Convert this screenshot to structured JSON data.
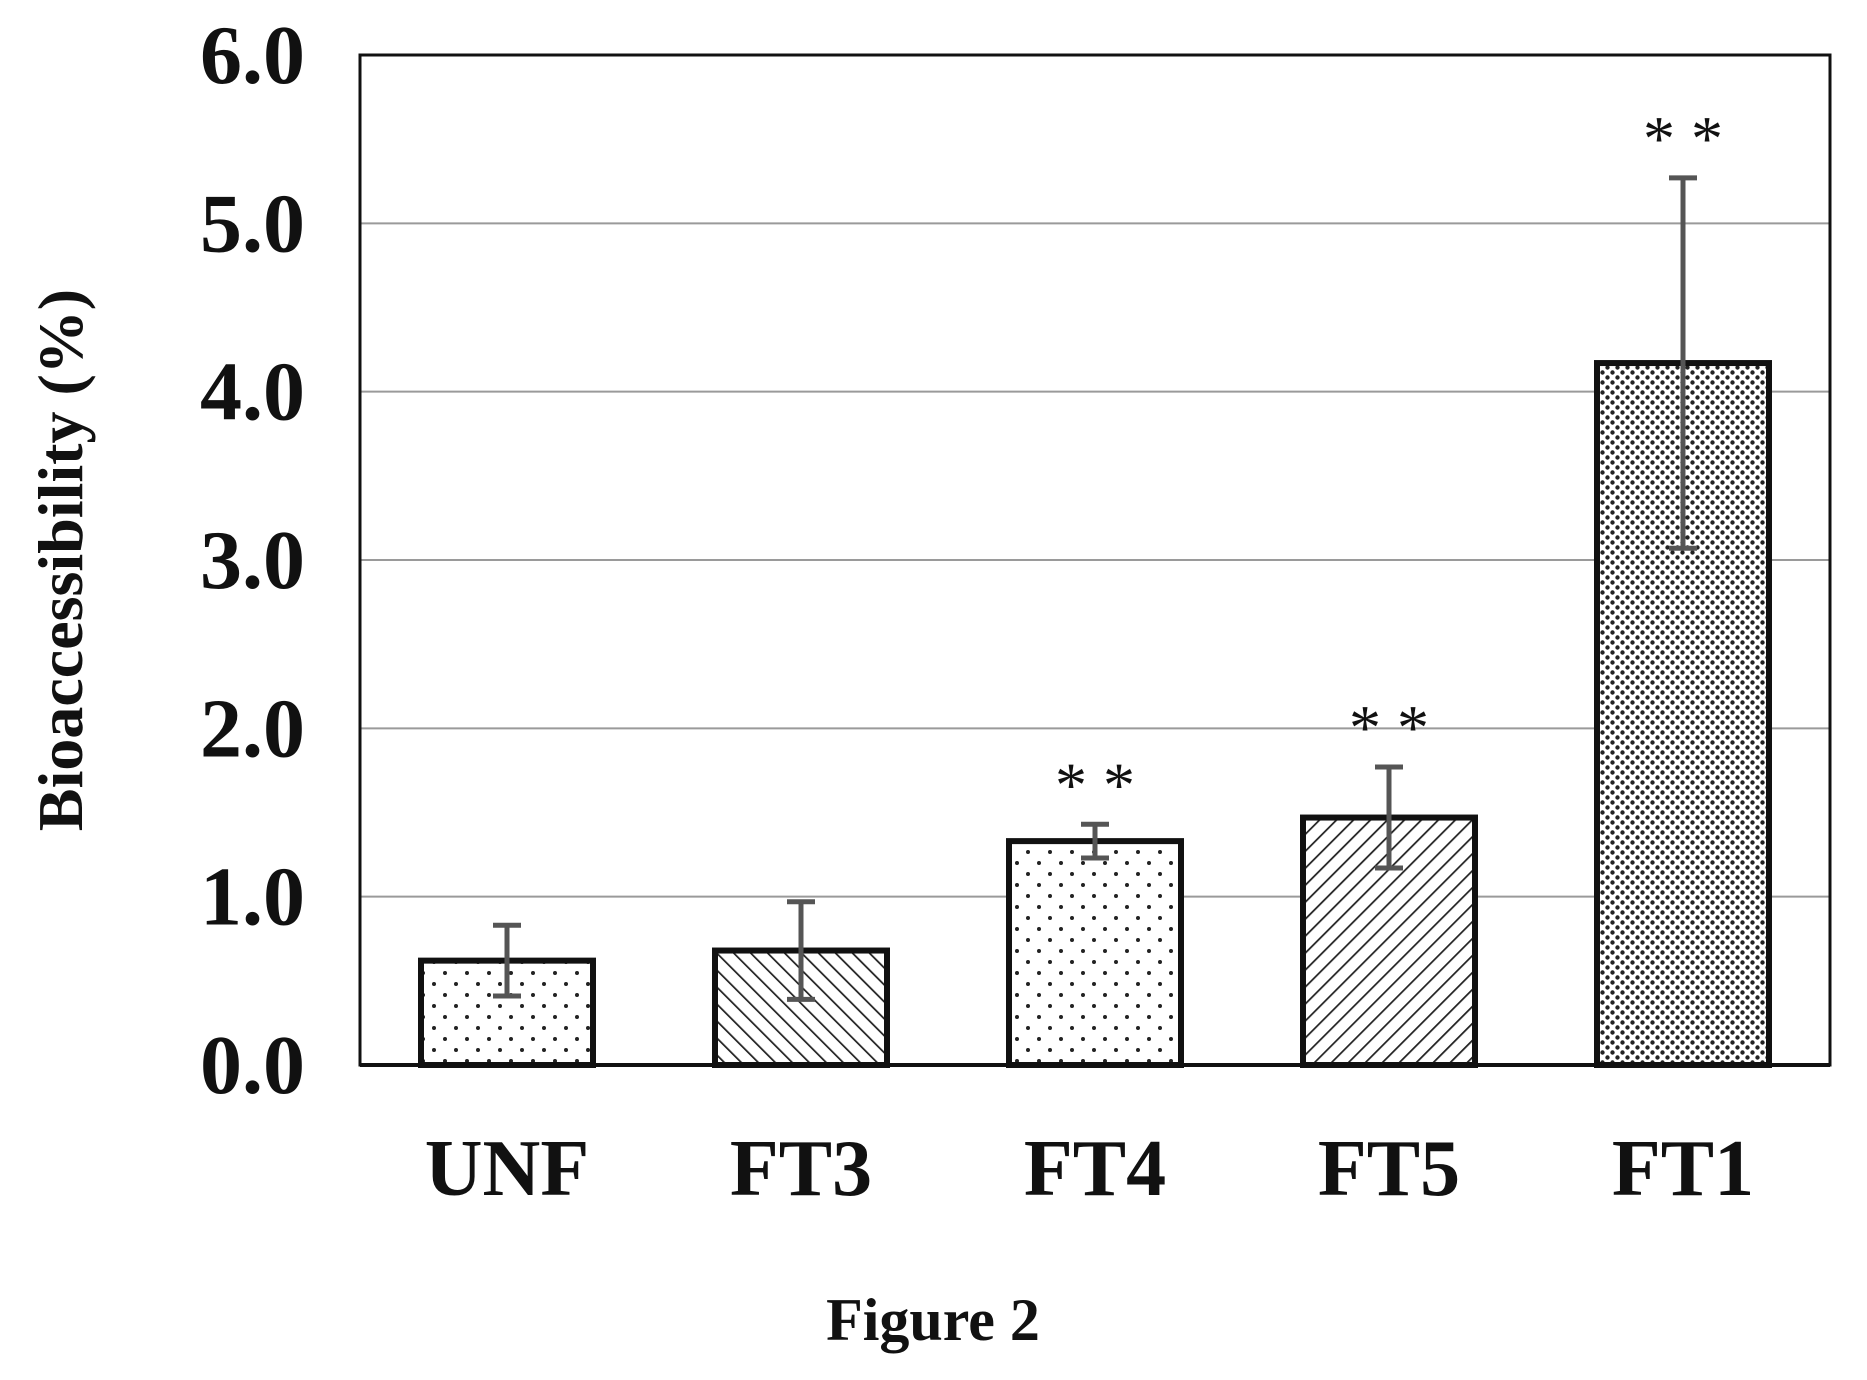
{
  "chart_data": {
    "type": "bar",
    "title": "",
    "xlabel": "",
    "ylabel": "Bioaccessibility (%)",
    "categories": [
      "UNF",
      "FT3",
      "FT4",
      "FT5",
      "FT1"
    ],
    "series": [
      {
        "values": [
          0.62,
          0.68,
          1.33,
          1.47,
          4.17
        ],
        "error": [
          0.21,
          0.29,
          0.1,
          0.3,
          1.1
        ],
        "patterns": [
          "sparse-dots",
          "hatch-backslash",
          "sparse-dots",
          "hatch-slash",
          "dense-dots"
        ]
      }
    ],
    "significance": [
      "",
      "",
      "* *",
      "* *",
      "* *"
    ],
    "ylim": [
      0,
      6
    ],
    "yticks": [
      "0.0",
      "1.0",
      "2.0",
      "3.0",
      "4.0",
      "5.0",
      "6.0"
    ],
    "grid": true,
    "legend": "none"
  },
  "caption": "Figure 2",
  "colors": {
    "bar_outline": "#111111",
    "grid": "#9a9a9a",
    "error_bar": "#555555",
    "pattern": "#222222"
  }
}
